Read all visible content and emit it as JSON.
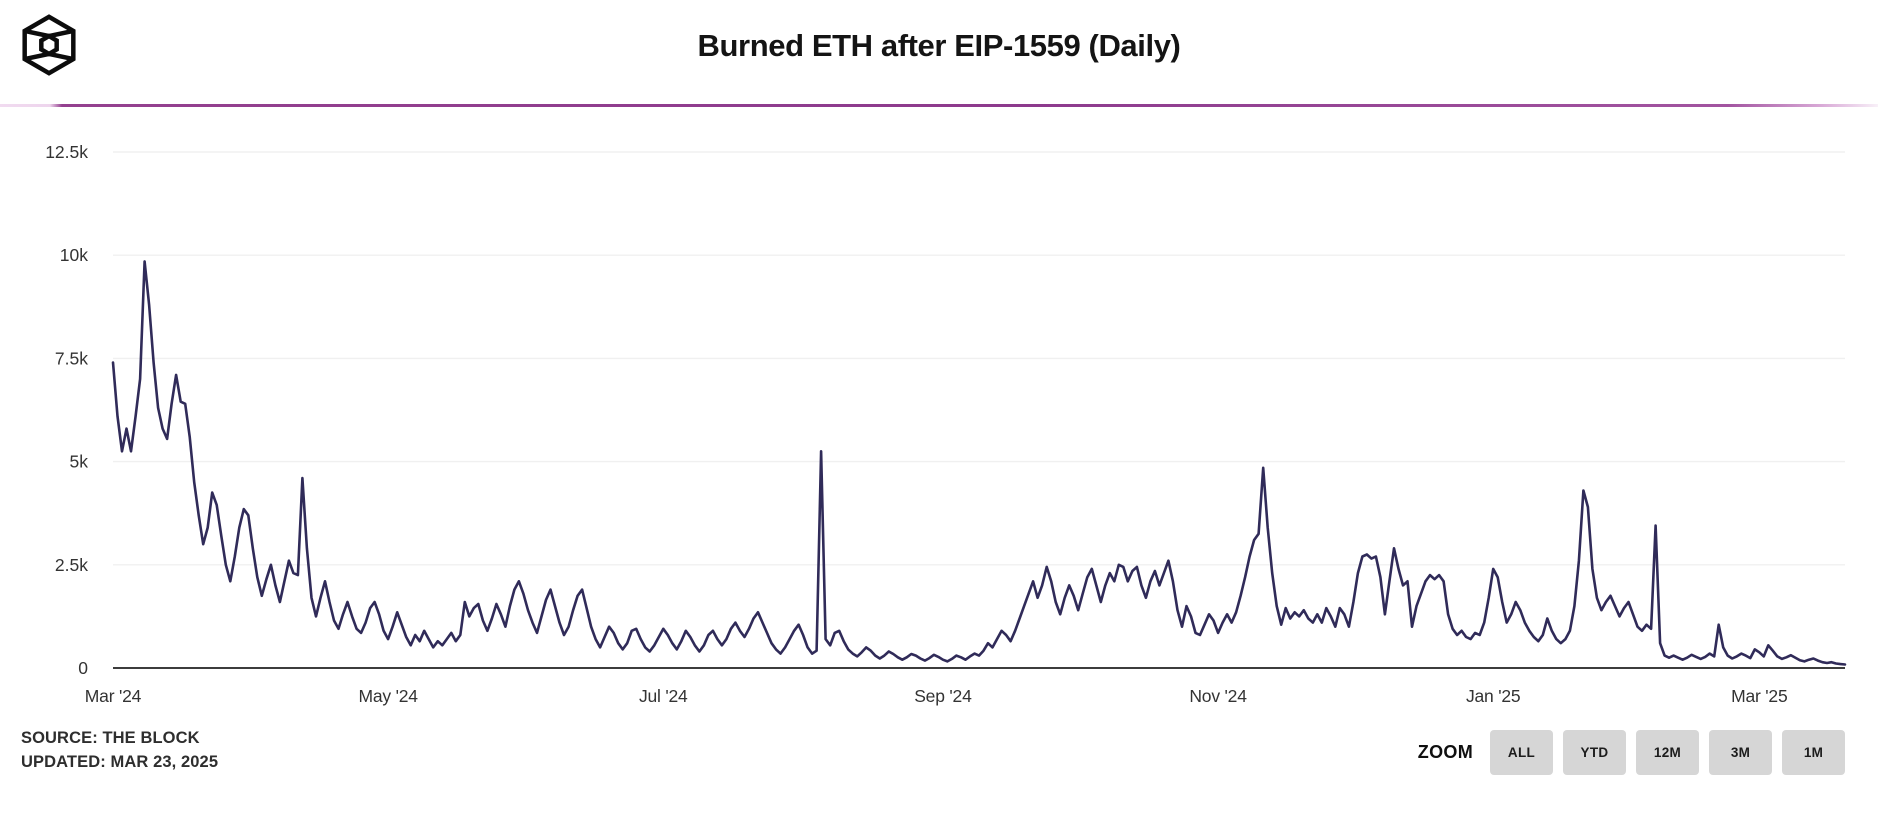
{
  "header": {
    "logo": "the-block-logo"
  },
  "chart_data": {
    "type": "line",
    "title": "Burned ETH after EIP-1559 (Daily)",
    "line_color": "#302b59",
    "grid": "horizontal",
    "legend": "none",
    "x_start": "2024-03-01",
    "x_step_days": 1,
    "x_tick_labels": [
      "Mar '24",
      "May '24",
      "Jul '24",
      "Sep '24",
      "Nov '24",
      "Jan '25",
      "Mar '25"
    ],
    "x_tick_day_offsets": [
      0,
      61,
      122,
      184,
      245,
      306,
      365
    ],
    "y_tick_labels": [
      "0",
      "2.5k",
      "5k",
      "7.5k",
      "10k",
      "12.5k"
    ],
    "y_tick_values": [
      0,
      2500,
      5000,
      7500,
      10000,
      12500
    ],
    "ylim": [
      0,
      12500
    ],
    "values": [
      7400,
      6100,
      5250,
      5800,
      5250,
      6100,
      7000,
      9850,
      8800,
      7400,
      6300,
      5800,
      5550,
      6400,
      7100,
      6450,
      6400,
      5600,
      4500,
      3700,
      3000,
      3400,
      4250,
      3950,
      3200,
      2500,
      2100,
      2700,
      3400,
      3850,
      3700,
      2900,
      2200,
      1750,
      2150,
      2500,
      2000,
      1600,
      2100,
      2600,
      2300,
      2250,
      4600,
      2900,
      1700,
      1250,
      1700,
      2100,
      1600,
      1150,
      950,
      1300,
      1600,
      1250,
      950,
      850,
      1100,
      1450,
      1600,
      1300,
      900,
      700,
      1000,
      1350,
      1050,
      750,
      550,
      800,
      650,
      900,
      700,
      500,
      650,
      550,
      700,
      850,
      650,
      800,
      1600,
      1250,
      1450,
      1550,
      1150,
      900,
      1200,
      1550,
      1300,
      1000,
      1500,
      1900,
      2100,
      1800,
      1400,
      1100,
      850,
      1250,
      1650,
      1900,
      1500,
      1100,
      800,
      1000,
      1400,
      1750,
      1900,
      1450,
      1000,
      700,
      500,
      750,
      1000,
      850,
      600,
      450,
      600,
      900,
      950,
      700,
      500,
      400,
      550,
      750,
      950,
      800,
      600,
      450,
      650,
      900,
      750,
      550,
      400,
      550,
      800,
      900,
      700,
      550,
      700,
      950,
      1100,
      900,
      750,
      950,
      1200,
      1350,
      1100,
      850,
      600,
      450,
      350,
      500,
      700,
      900,
      1050,
      800,
      500,
      350,
      420,
      5250,
      700,
      550,
      850,
      900,
      650,
      450,
      350,
      280,
      380,
      500,
      420,
      300,
      230,
      300,
      400,
      340,
      260,
      200,
      260,
      340,
      300,
      230,
      180,
      240,
      320,
      270,
      200,
      160,
      220,
      300,
      260,
      200,
      280,
      350,
      300,
      420,
      600,
      500,
      700,
      900,
      800,
      650,
      900,
      1200,
      1500,
      1800,
      2100,
      1700,
      2000,
      2450,
      2100,
      1600,
      1300,
      1700,
      2000,
      1750,
      1400,
      1800,
      2200,
      2400,
      2000,
      1600,
      2000,
      2300,
      2100,
      2500,
      2450,
      2100,
      2350,
      2450,
      2000,
      1700,
      2100,
      2350,
      2000,
      2300,
      2600,
      2100,
      1400,
      1000,
      1500,
      1250,
      850,
      800,
      1050,
      1300,
      1150,
      850,
      1100,
      1300,
      1100,
      1350,
      1750,
      2200,
      2700,
      3100,
      3250,
      4850,
      3400,
      2300,
      1500,
      1050,
      1450,
      1200,
      1350,
      1250,
      1400,
      1200,
      1100,
      1300,
      1100,
      1450,
      1250,
      1000,
      1450,
      1300,
      1000,
      1600,
      2300,
      2700,
      2750,
      2650,
      2700,
      2200,
      1300,
      2100,
      2900,
      2400,
      2000,
      2100,
      1000,
      1500,
      1800,
      2100,
      2250,
      2150,
      2250,
      2100,
      1300,
      950,
      800,
      900,
      750,
      700,
      850,
      800,
      1100,
      1700,
      2400,
      2200,
      1600,
      1100,
      1300,
      1600,
      1400,
      1100,
      900,
      750,
      650,
      800,
      1200,
      900,
      700,
      600,
      700,
      900,
      1500,
      2600,
      4300,
      3900,
      2400,
      1700,
      1400,
      1600,
      1750,
      1500,
      1250,
      1450,
      1600,
      1300,
      1000,
      900,
      1050,
      950,
      3450,
      600,
      300,
      250,
      300,
      250,
      200,
      250,
      320,
      270,
      220,
      270,
      350,
      280,
      1050,
      500,
      300,
      230,
      280,
      350,
      300,
      240,
      450,
      380,
      280,
      550,
      420,
      280,
      220,
      260,
      310,
      250,
      190,
      160,
      200,
      230,
      180,
      140,
      120,
      140,
      110,
      95,
      85
    ]
  },
  "footer": {
    "source": "SOURCE: THE BLOCK",
    "updated": "UPDATED: MAR 23, 2025",
    "zoom_label": "ZOOM",
    "zoom_buttons": [
      "ALL",
      "YTD",
      "12M",
      "3M",
      "1M"
    ]
  }
}
